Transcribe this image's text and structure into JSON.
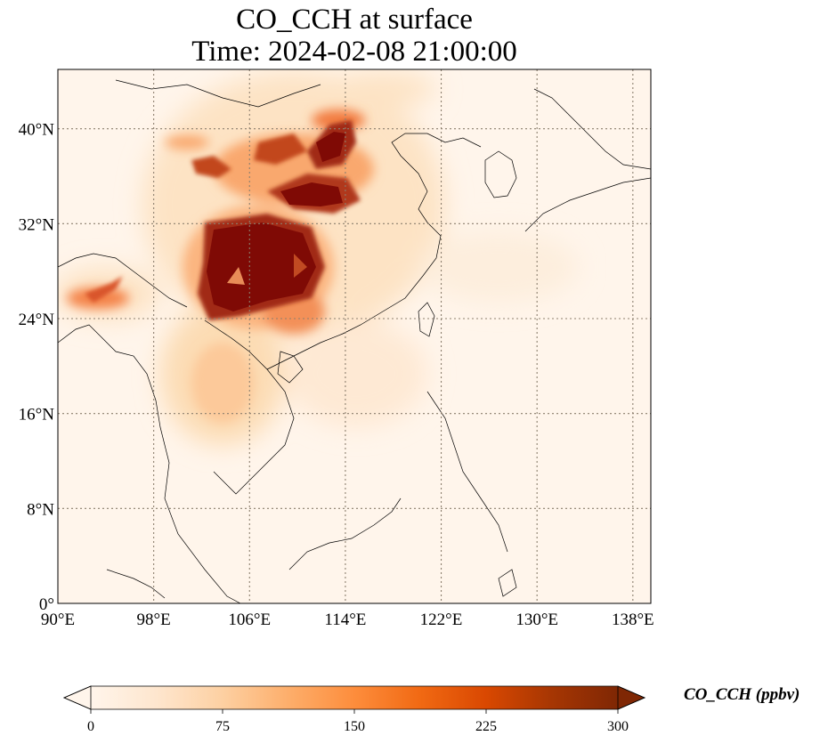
{
  "title": {
    "line1": "CO_CCH at surface",
    "line2": "Time: 2024-02-08 21:00:00"
  },
  "map": {
    "lon_range": [
      90,
      139.5
    ],
    "lat_range": [
      0,
      45
    ],
    "lon_ticks": [
      {
        "value": 90,
        "label": "90°E"
      },
      {
        "value": 98,
        "label": "98°E"
      },
      {
        "value": 106,
        "label": "106°E"
      },
      {
        "value": 114,
        "label": "114°E"
      },
      {
        "value": 122,
        "label": "122°E"
      },
      {
        "value": 130,
        "label": "130°E"
      },
      {
        "value": 138,
        "label": "138°E"
      }
    ],
    "lat_ticks": [
      {
        "value": 0,
        "label": "0°"
      },
      {
        "value": 8,
        "label": "8°N"
      },
      {
        "value": 16,
        "label": "16°N"
      },
      {
        "value": 24,
        "label": "24°N"
      },
      {
        "value": 32,
        "label": "32°N"
      },
      {
        "value": 40,
        "label": "40°N"
      }
    ],
    "gridlines": true,
    "colormap": "OrRd",
    "background_color": "#fff5eb",
    "gridline_color": "#8c7f6e"
  },
  "colorbar": {
    "title": "CO_CCH (ppbv)",
    "min": 0,
    "max": 300,
    "extend": "both",
    "ticks": [
      {
        "value": 0,
        "label": "0"
      },
      {
        "value": 75,
        "label": "75"
      },
      {
        "value": 150,
        "label": "150"
      },
      {
        "value": 225,
        "label": "225"
      },
      {
        "value": 300,
        "label": "300"
      }
    ],
    "stops": [
      "#fff5eb",
      "#fee6ce",
      "#fdd0a2",
      "#fdae6b",
      "#fd8d3c",
      "#f16913",
      "#d94801",
      "#a63603",
      "#7f2704"
    ]
  }
}
